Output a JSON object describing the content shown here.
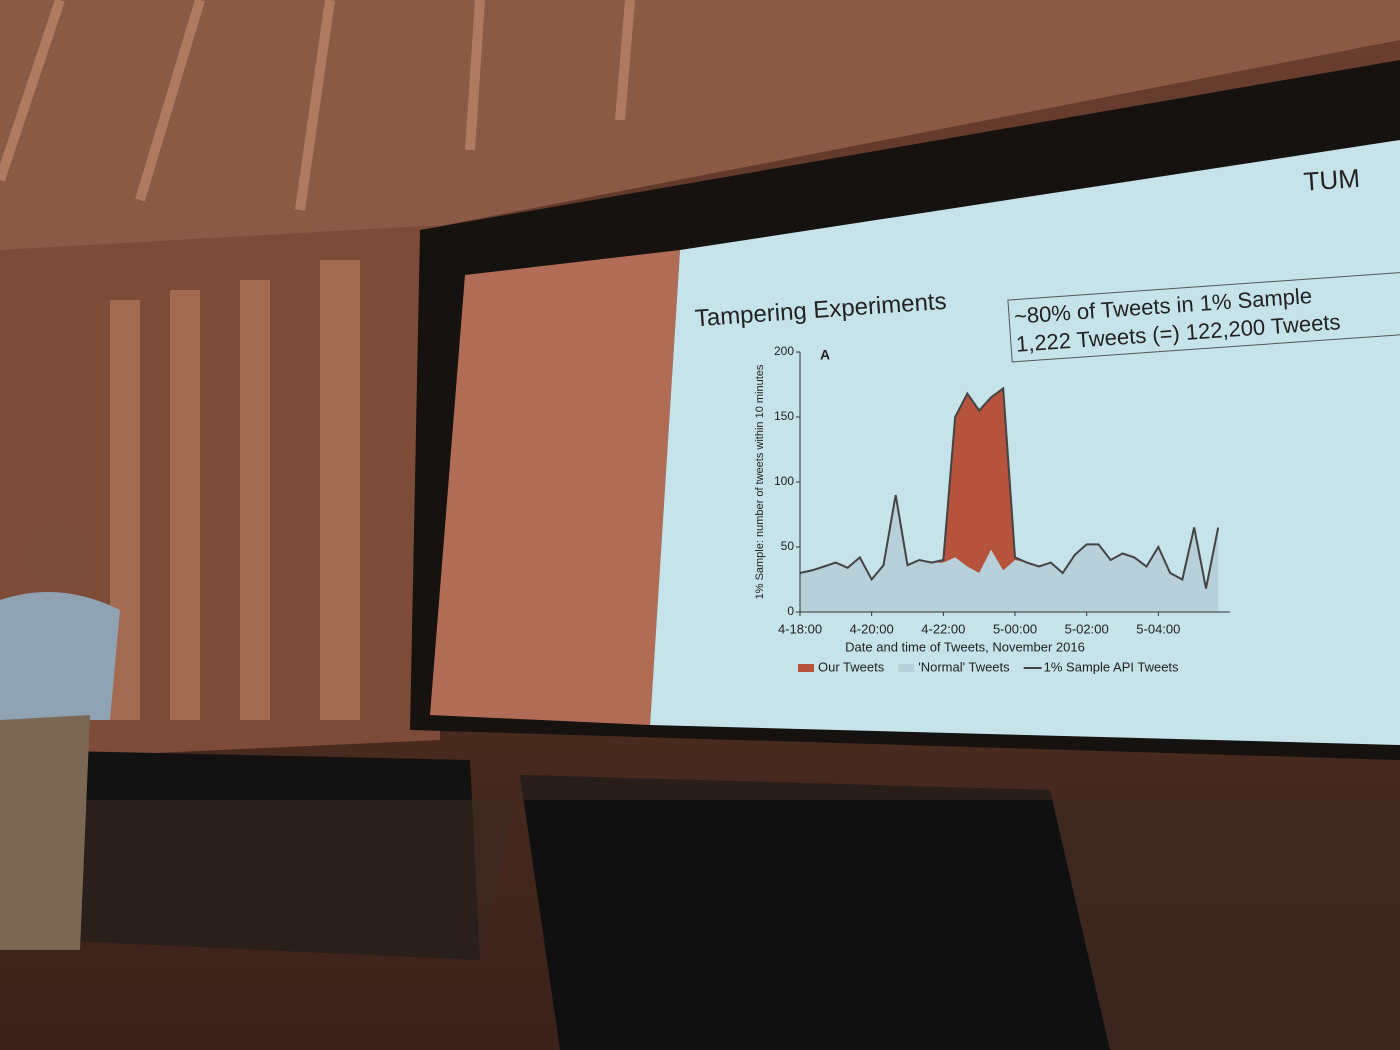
{
  "slide": {
    "logo": "TUM",
    "title": "Tampering Experiments",
    "callout": [
      "~80% of Tweets in 1% Sample",
      "1,222 Tweets (=) 122,200 Tweets"
    ]
  },
  "chart_data": {
    "type": "stacked-area-line",
    "panel_label": "A",
    "xlabel": "Date and time of Tweets, November 2016",
    "ylabel": "1% Sample: number of tweets within 10 minutes",
    "x": [
      18,
      18.33,
      18.67,
      19,
      19.33,
      19.67,
      20,
      20.33,
      20.67,
      21,
      21.33,
      21.67,
      22,
      22.33,
      22.67,
      23,
      23.33,
      23.67,
      24,
      24.33,
      24.67,
      25,
      25.33,
      25.67,
      26,
      26.33,
      26.67,
      27,
      27.33,
      27.67,
      28,
      28.33,
      28.67,
      29,
      29.33,
      29.67
    ],
    "series": [
      {
        "name": "Our Tweets",
        "color": "#b5533c",
        "kind": "area",
        "values": [
          0,
          0,
          0,
          0,
          0,
          0,
          0,
          0,
          0,
          0,
          0,
          0,
          2,
          108,
          133,
          125,
          117,
          140,
          2,
          0,
          0,
          0,
          0,
          0,
          0,
          0,
          0,
          0,
          0,
          0,
          0,
          0,
          0,
          0,
          0,
          0
        ]
      },
      {
        "name": "'Normal' Tweets",
        "color": "#b7d0da",
        "kind": "area",
        "values": [
          30,
          32,
          35,
          38,
          34,
          42,
          25,
          36,
          90,
          36,
          40,
          38,
          38,
          42,
          35,
          30,
          48,
          32,
          40,
          38,
          35,
          38,
          30,
          44,
          52,
          52,
          40,
          45,
          42,
          35,
          50,
          30,
          25,
          65,
          18,
          65
        ]
      },
      {
        "name": "1% Sample API Tweets",
        "color": "#444444",
        "kind": "line",
        "values": [
          30,
          32,
          35,
          38,
          34,
          42,
          25,
          36,
          90,
          36,
          40,
          38,
          40,
          150,
          168,
          155,
          165,
          172,
          42,
          38,
          35,
          38,
          30,
          44,
          52,
          52,
          40,
          45,
          42,
          35,
          50,
          30,
          25,
          65,
          18,
          65
        ]
      }
    ],
    "xlim": [
      18,
      30
    ],
    "xticks": [
      {
        "value": 18,
        "label": "4-18:00"
      },
      {
        "value": 20,
        "label": "4-20:00"
      },
      {
        "value": 22,
        "label": "4-22:00"
      },
      {
        "value": 24,
        "label": "5-00:00"
      },
      {
        "value": 26,
        "label": "5-02:00"
      },
      {
        "value": 28,
        "label": "5-04:00"
      }
    ],
    "ylim": [
      0,
      200
    ],
    "yticks": [
      0,
      50,
      100,
      150,
      200
    ],
    "legend": "bottom"
  }
}
